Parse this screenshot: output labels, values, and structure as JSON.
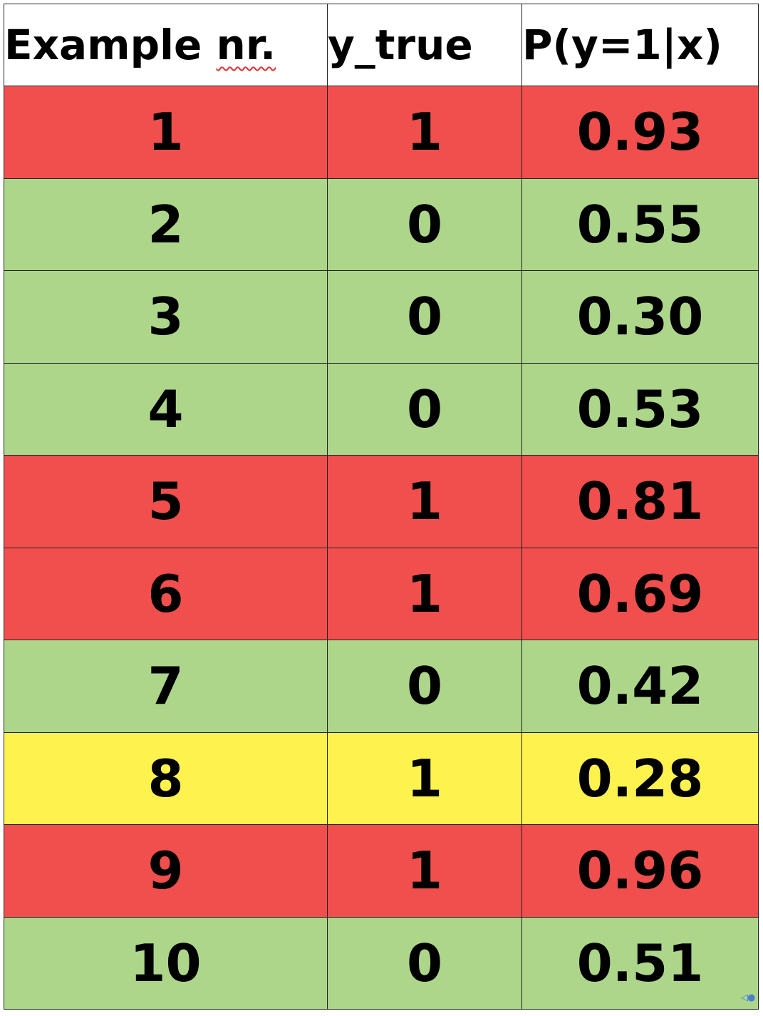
{
  "table": {
    "headers": {
      "example": "Example",
      "nr": "nr.",
      "y_true": "y_true",
      "prob": "P(y=1|x)"
    },
    "rows": [
      {
        "example": "1",
        "y_true": "1",
        "prob": "0.93",
        "color": "#f04f4d"
      },
      {
        "example": "2",
        "y_true": "0",
        "prob": "0.55",
        "color": "#add68b"
      },
      {
        "example": "3",
        "y_true": "0",
        "prob": "0.30",
        "color": "#add68b"
      },
      {
        "example": "4",
        "y_true": "0",
        "prob": "0.53",
        "color": "#add68b"
      },
      {
        "example": "5",
        "y_true": "1",
        "prob": "0.81",
        "color": "#f04f4d"
      },
      {
        "example": "6",
        "y_true": "1",
        "prob": "0.69",
        "color": "#f04f4d"
      },
      {
        "example": "7",
        "y_true": "0",
        "prob": "0.42",
        "color": "#add68b"
      },
      {
        "example": "8",
        "y_true": "1",
        "prob": "0.28",
        "color": "#fef24e"
      },
      {
        "example": "9",
        "y_true": "1",
        "prob": "0.96",
        "color": "#f04f4d"
      },
      {
        "example": "10",
        "y_true": "0",
        "prob": "0.51",
        "color": "#add68b"
      }
    ]
  },
  "corner_icon": "navigation-arrows-icon"
}
